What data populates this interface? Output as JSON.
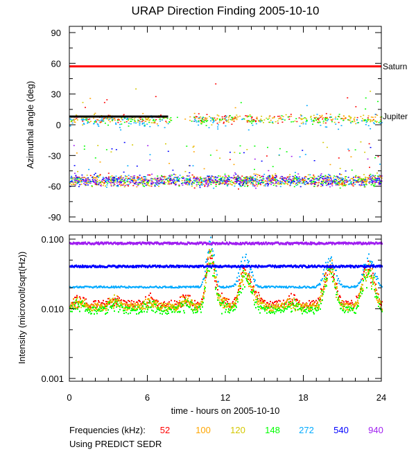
{
  "chart_data": [
    {
      "type": "scatter",
      "title": "URAP Direction Finding  2005-10-10",
      "xlabel": "time - hours on 2005-10-10",
      "ylabel": "Azimuthal angle (deg)",
      "xlim": [
        0,
        24
      ],
      "ylim": [
        -90,
        90
      ],
      "xticks": [
        "0",
        "6",
        "12",
        "18",
        "24"
      ],
      "yticks": [
        "90",
        "60",
        "30",
        "0",
        "-30",
        "-60",
        "-90"
      ],
      "reference_lines": [
        {
          "label": "Saturn",
          "value": 57,
          "color": "#ff0000",
          "x_range": [
            0,
            24
          ]
        },
        {
          "label": "Jupiter",
          "value": 8,
          "color": "#000000",
          "x_range": [
            0,
            7.6
          ]
        }
      ],
      "series": [
        {
          "name": "52",
          "color": "#ff0000",
          "clusters": [
            {
              "center": 6,
              "spread": 4
            },
            {
              "center": -54,
              "spread": 5
            }
          ]
        },
        {
          "name": "100",
          "color": "#ffa500",
          "clusters": [
            {
              "center": 6,
              "spread": 4
            },
            {
              "center": -54,
              "spread": 5
            }
          ]
        },
        {
          "name": "120",
          "color": "#d4c800",
          "clusters": [
            {
              "center": 6,
              "spread": 4
            },
            {
              "center": -54,
              "spread": 5
            }
          ]
        },
        {
          "name": "148",
          "color": "#00ff00",
          "clusters": [
            {
              "center": 5,
              "spread": 4
            },
            {
              "center": -54,
              "spread": 5
            }
          ]
        },
        {
          "name": "272",
          "color": "#00aaff",
          "clusters": [
            {
              "center": 3,
              "spread": 6
            },
            {
              "center": -54,
              "spread": 5
            }
          ]
        },
        {
          "name": "540",
          "color": "#0000ff",
          "clusters": [
            {
              "center": -54,
              "spread": 5
            }
          ]
        },
        {
          "name": "940",
          "color": "#a020f0",
          "clusters": [
            {
              "center": -54,
              "spread": 5
            }
          ]
        }
      ]
    },
    {
      "type": "line",
      "xlabel": "time - hours on 2005-10-10",
      "ylabel": "Intensity (microvolt/sqrt(Hz))",
      "xlim": [
        0,
        24
      ],
      "ylim": [
        0.001,
        0.1
      ],
      "yscale": "log",
      "xticks": [
        "0",
        "6",
        "12",
        "18",
        "24"
      ],
      "yticks": [
        "0.100",
        "0.010",
        "0.001"
      ],
      "series": [
        {
          "name": "52",
          "color": "#ff0000",
          "baseline": 0.012
        },
        {
          "name": "100",
          "color": "#ffa500",
          "baseline": 0.011
        },
        {
          "name": "120",
          "color": "#d4c800",
          "baseline": 0.0108
        },
        {
          "name": "148",
          "color": "#00ff00",
          "baseline": 0.0098
        },
        {
          "name": "272",
          "color": "#00aaff",
          "baseline": 0.021
        },
        {
          "name": "540",
          "color": "#0000ff",
          "baseline": 0.042
        },
        {
          "name": "940",
          "color": "#a020f0",
          "baseline": 0.09
        }
      ],
      "events_hours": [
        10.8,
        13.5,
        20,
        23
      ]
    }
  ],
  "legend": {
    "label": "Frequencies (kHz):",
    "items": [
      {
        "text": "52",
        "color": "#ff0000"
      },
      {
        "text": "100",
        "color": "#ffa500"
      },
      {
        "text": "120",
        "color": "#d4c800"
      },
      {
        "text": "148",
        "color": "#00ff00"
      },
      {
        "text": "272",
        "color": "#00aaff"
      },
      {
        "text": "540",
        "color": "#0000ff"
      },
      {
        "text": "940",
        "color": "#a020f0"
      }
    ]
  },
  "footer": "Using PREDICT SEDR"
}
